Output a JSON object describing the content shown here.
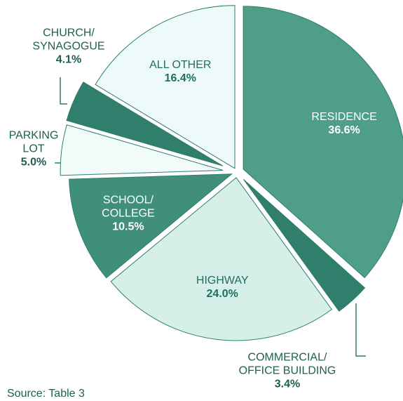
{
  "chart_data": {
    "type": "pie",
    "categories": [
      "RESIDENCE",
      "COMMERCIAL/\nOFFICE BUILDING",
      "HIGHWAY",
      "SCHOOL/\nCOLLEGE",
      "PARKING\nLOT",
      "CHURCH/\nSYNAGOGUE",
      "ALL OTHER"
    ],
    "values": [
      36.6,
      3.4,
      24.0,
      10.5,
      5.0,
      4.1,
      16.4
    ],
    "value_labels": [
      "36.6%",
      "3.4%",
      "24.0%",
      "10.5%",
      "5.0%",
      "4.1%",
      "16.4%"
    ],
    "colors": [
      "#4e9e89",
      "#2f7f6c",
      "#d6efe9",
      "#3f8f7b",
      "#f1fbfa",
      "#2f7f6c",
      "#eefaf9"
    ],
    "source": "Source:  Table 3"
  }
}
